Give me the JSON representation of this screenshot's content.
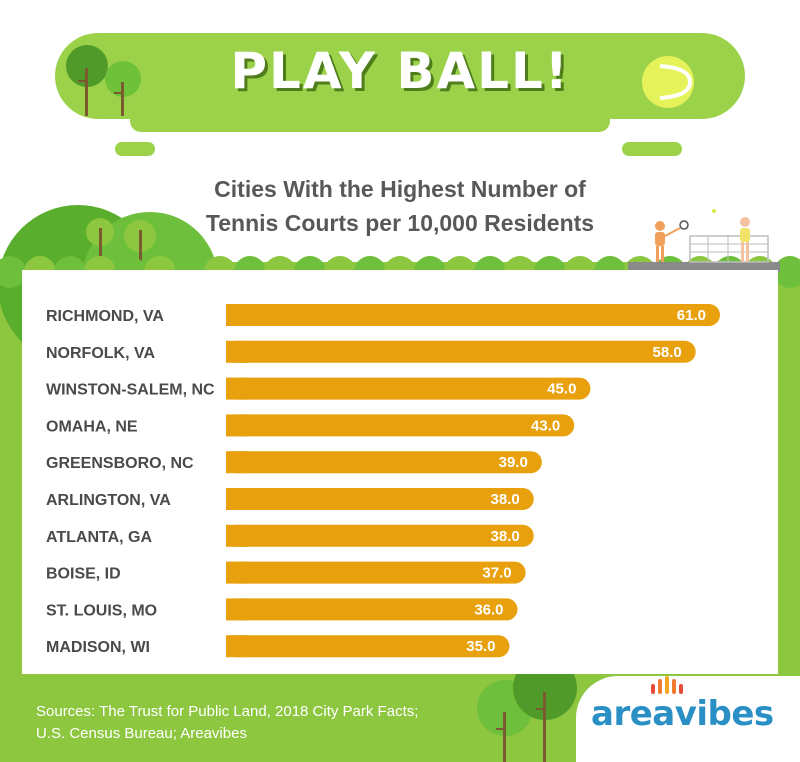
{
  "banner": {
    "title": "PLAY BALL!"
  },
  "subtitle": {
    "line1": "Cities With the Highest Number of",
    "line2": "Tennis Courts per 10,000 Residents"
  },
  "colors": {
    "green": "#8dc63f",
    "bar": "#e8a00c",
    "banner": "#9bd24a",
    "banner_shadow": "#4f7d1c",
    "logo_blue": "#2a8fc4"
  },
  "chart_data": {
    "type": "bar",
    "orientation": "horizontal",
    "title": "Cities With the Highest Number of Tennis Courts per 10,000 Residents",
    "categories": [
      "RICHMOND, VA",
      "NORFOLK, VA",
      "WINSTON-SALEM, NC",
      "OMAHA, NE",
      "GREENSBORO, NC",
      "ARLINGTON, VA",
      "ATLANTA, GA",
      "BOISE, ID",
      "ST. LOUIS, MO",
      "MADISON, WI"
    ],
    "values": [
      61.0,
      58.0,
      45.0,
      43.0,
      39.0,
      38.0,
      38.0,
      37.0,
      36.0,
      35.0
    ],
    "value_labels": [
      "61.0",
      "58.0",
      "45.0",
      "43.0",
      "39.0",
      "38.0",
      "38.0",
      "37.0",
      "36.0",
      "35.0"
    ],
    "xlim": [
      0,
      61.0
    ],
    "grid": false,
    "legend": "none"
  },
  "footer": {
    "source_line1": "Sources: The Trust for Public Land, 2018 City Park Facts;",
    "source_line2": "U.S. Census Bureau; Areavibes",
    "logo": "areavibes"
  },
  "icons": {
    "ball": "tennis-ball-icon",
    "players": "tennis-players-icon",
    "trees": "tree-icon"
  }
}
